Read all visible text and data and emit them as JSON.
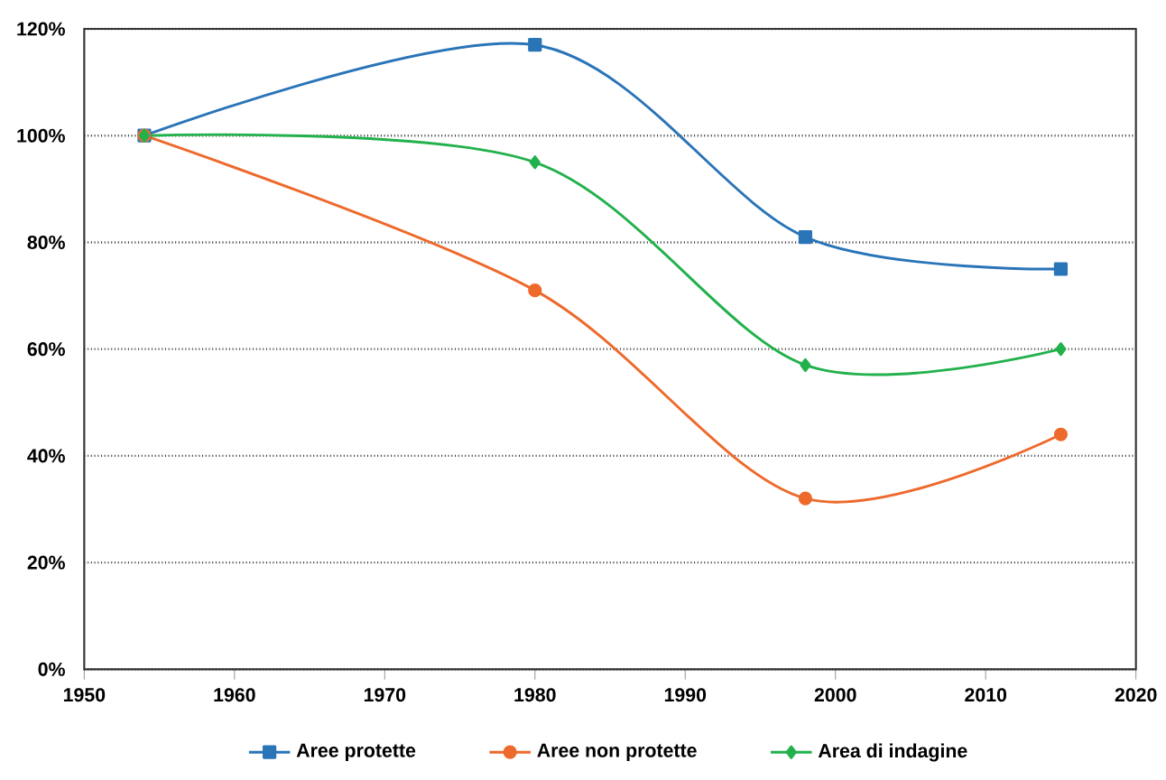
{
  "chart_data": {
    "type": "line",
    "x": [
      1954,
      1980,
      1998,
      2015
    ],
    "series": [
      {
        "name": "Aree protette",
        "color": "#2a74b8",
        "marker": "square",
        "values": [
          100,
          117,
          81,
          75
        ]
      },
      {
        "name": "Aree non protette",
        "color": "#ed6a2c",
        "marker": "circle",
        "values": [
          100,
          71,
          32,
          44
        ]
      },
      {
        "name": "Area di indagine",
        "color": "#22b14c",
        "marker": "diamond",
        "values": [
          100,
          95,
          57,
          60
        ]
      }
    ],
    "xlim": [
      1950,
      2020
    ],
    "xticks": [
      1950,
      1960,
      1970,
      1980,
      1990,
      2000,
      2010,
      2020
    ],
    "ylim": [
      0,
      120
    ],
    "yticks": [
      {
        "value": 0,
        "label": "0%"
      },
      {
        "value": 20,
        "label": "20%"
      },
      {
        "value": 40,
        "label": "40%"
      },
      {
        "value": 60,
        "label": "60%"
      },
      {
        "value": 80,
        "label": "80%"
      },
      {
        "value": 100,
        "label": "100%"
      },
      {
        "value": 120,
        "label": "120%"
      }
    ],
    "grid": "y",
    "legend": "bottom",
    "line_style": "solid"
  }
}
